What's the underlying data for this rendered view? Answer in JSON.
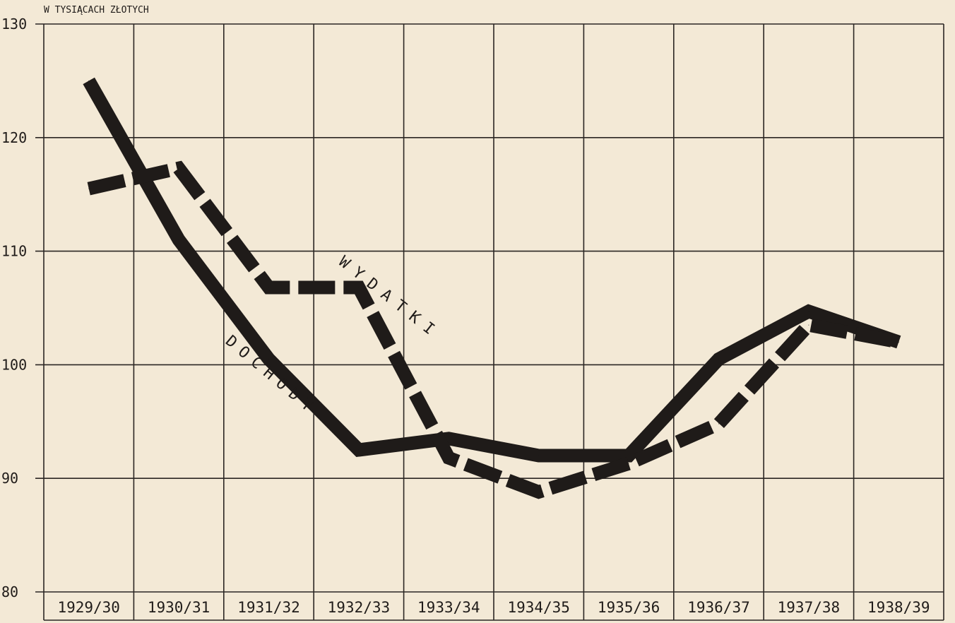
{
  "chart_data": {
    "type": "line",
    "title": "",
    "ylabel": "W TYSIĄCACH ZŁOTYCH",
    "xlabel": "",
    "ylim": [
      80,
      130
    ],
    "yticks": [
      80,
      90,
      100,
      110,
      120,
      130
    ],
    "categories": [
      "1929/30",
      "1930/31",
      "1931/32",
      "1932/33",
      "1933/34",
      "1934/35",
      "1935/36",
      "1936/37",
      "1937/38",
      "1938/39"
    ],
    "grid": true,
    "series": [
      {
        "name": "DOCHODY",
        "style": "solid",
        "values": [
          125.0,
          111.0,
          100.5,
          92.5,
          93.5,
          92.0,
          92.0,
          100.5,
          104.7,
          102.0
        ]
      },
      {
        "name": "WYDATKI",
        "style": "dashed",
        "values": [
          115.5,
          117.3,
          106.8,
          106.8,
          91.8,
          88.8,
          91.3,
          94.8,
          103.5,
          102.0
        ]
      }
    ],
    "annotations": {
      "dochody": "DOCHODY",
      "wydatki": "WYDATKI"
    },
    "colors": {
      "background": "#f3e9d6",
      "ink": "#1f1b19",
      "grid": "#2b2623"
    }
  }
}
